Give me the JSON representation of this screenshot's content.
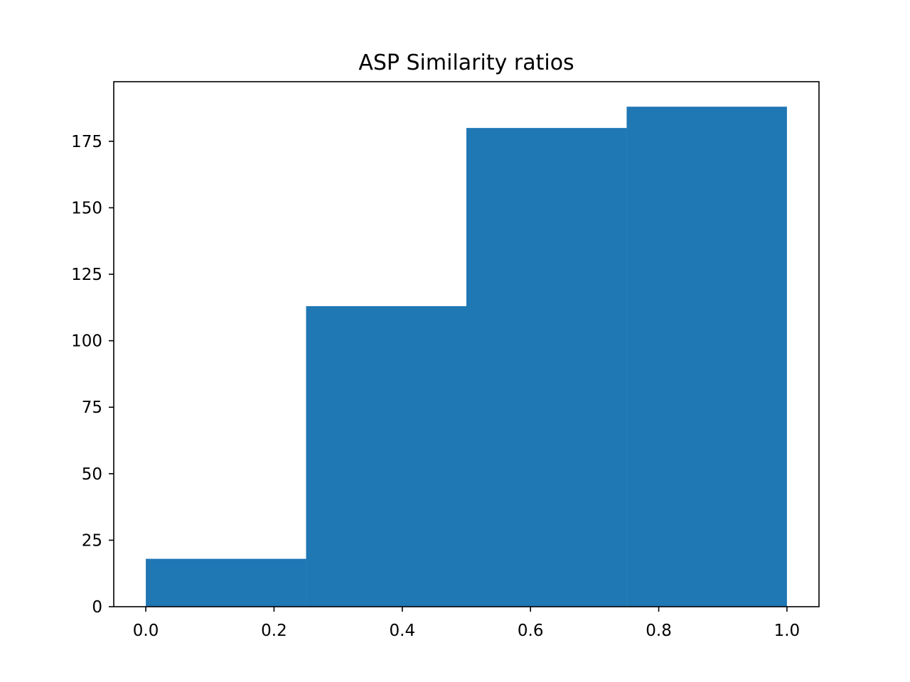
{
  "chart_data": {
    "type": "bar",
    "title": "ASP Similarity ratios",
    "xlabel": "",
    "ylabel": "",
    "bins": [
      {
        "x0": 0.0,
        "x1": 0.25,
        "value": 18
      },
      {
        "x0": 0.25,
        "x1": 0.5,
        "value": 113
      },
      {
        "x0": 0.5,
        "x1": 0.75,
        "value": 180
      },
      {
        "x0": 0.75,
        "x1": 1.0,
        "value": 188
      }
    ],
    "xlim": [
      -0.05,
      1.05
    ],
    "ylim": [
      0,
      197.4
    ],
    "xticks": [
      0.0,
      0.2,
      0.4,
      0.6,
      0.8,
      1.0
    ],
    "xtick_labels": [
      "0.0",
      "0.2",
      "0.4",
      "0.6",
      "0.8",
      "1.0"
    ],
    "yticks": [
      0,
      25,
      50,
      75,
      100,
      125,
      150,
      175
    ],
    "ytick_labels": [
      "0",
      "25",
      "50",
      "75",
      "100",
      "125",
      "150",
      "175"
    ],
    "grid": false,
    "bar_color": "#1f77b4"
  }
}
